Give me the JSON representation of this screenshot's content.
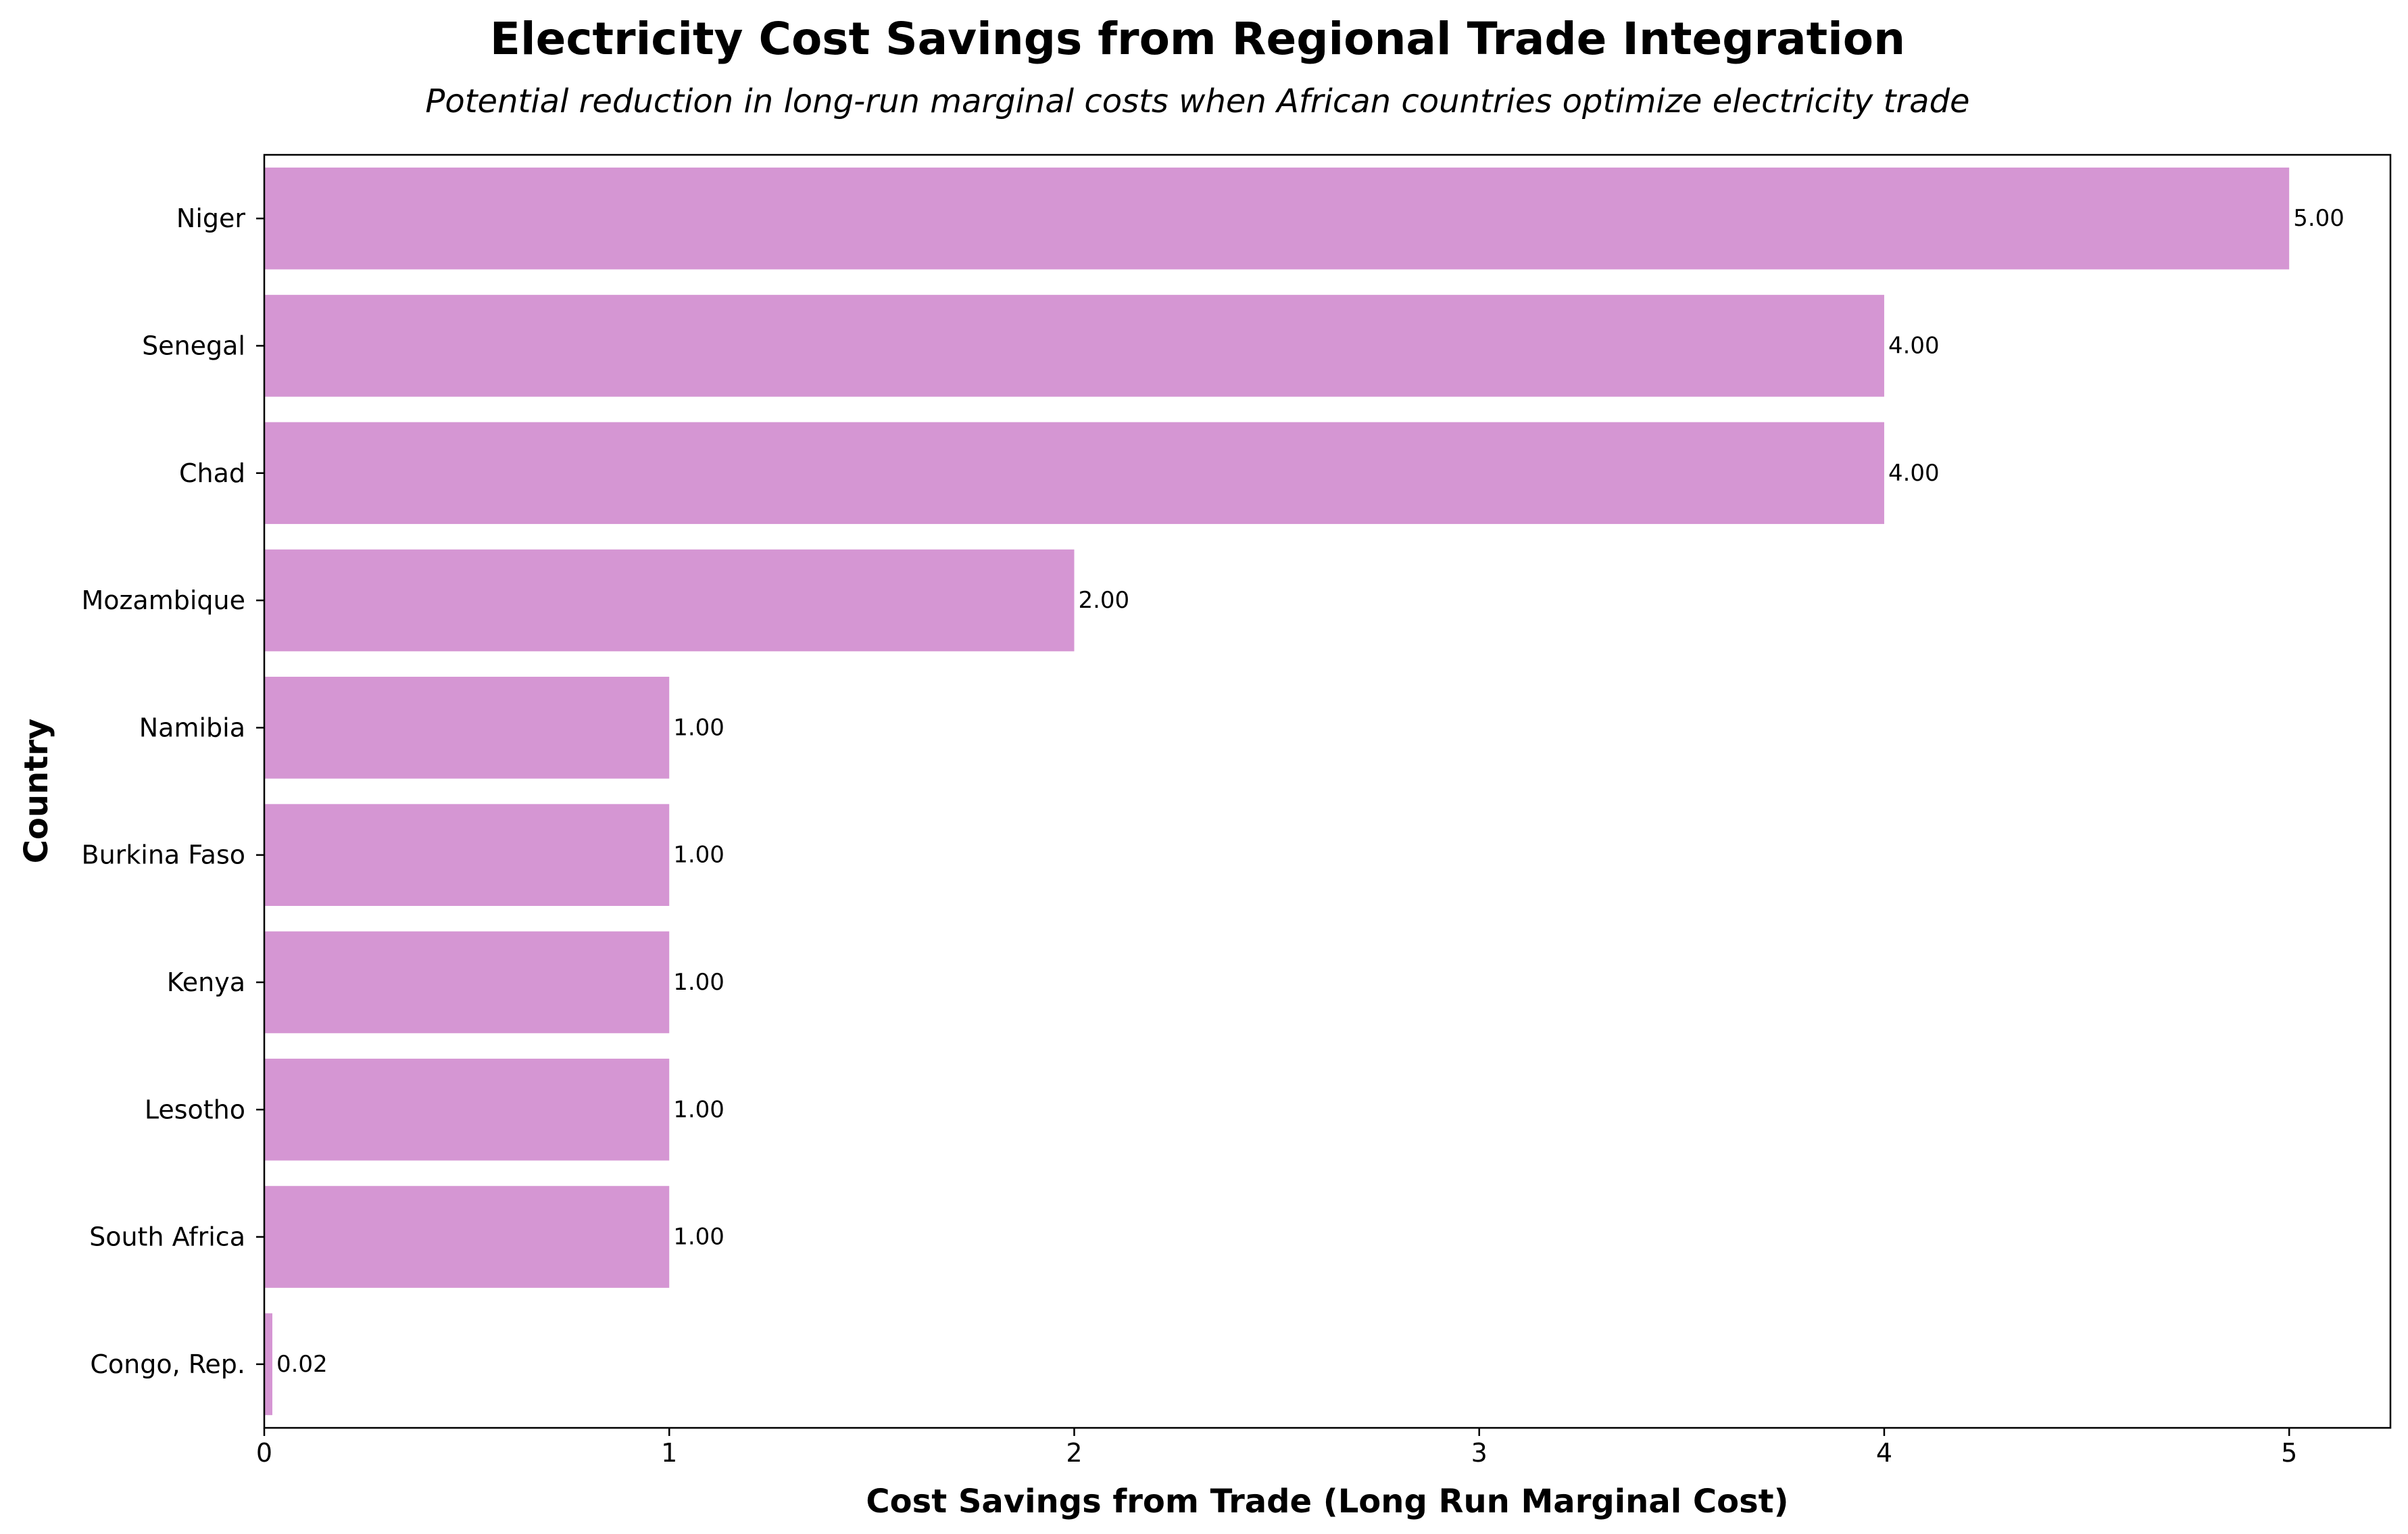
{
  "chart_data": {
    "type": "bar",
    "orientation": "horizontal",
    "title": "Electricity Cost Savings from Regional Trade Integration",
    "subtitle": "Potential reduction in long-run marginal costs when African countries optimize electricity trade",
    "xlabel": "Cost Savings from Trade (Long Run Marginal Cost)",
    "ylabel": "Country",
    "categories": [
      "Niger",
      "Senegal",
      "Chad",
      "Mozambique",
      "Namibia",
      "Burkina Faso",
      "Kenya",
      "Lesotho",
      "South Africa",
      "Congo, Rep."
    ],
    "values": [
      5.0,
      4.0,
      4.0,
      2.0,
      1.0,
      1.0,
      1.0,
      1.0,
      1.0,
      0.02
    ],
    "value_labels": [
      "5.00",
      "4.00",
      "4.00",
      "2.00",
      "1.00",
      "1.00",
      "1.00",
      "1.00",
      "1.00",
      "0.02"
    ],
    "xlim": [
      0,
      5.25
    ],
    "xticks": [
      0,
      1,
      2,
      3,
      4,
      5
    ],
    "xtick_labels": [
      "0",
      "1",
      "2",
      "3",
      "4",
      "5"
    ],
    "bar_color": "#d596d3",
    "grid": false,
    "legend": "none"
  }
}
